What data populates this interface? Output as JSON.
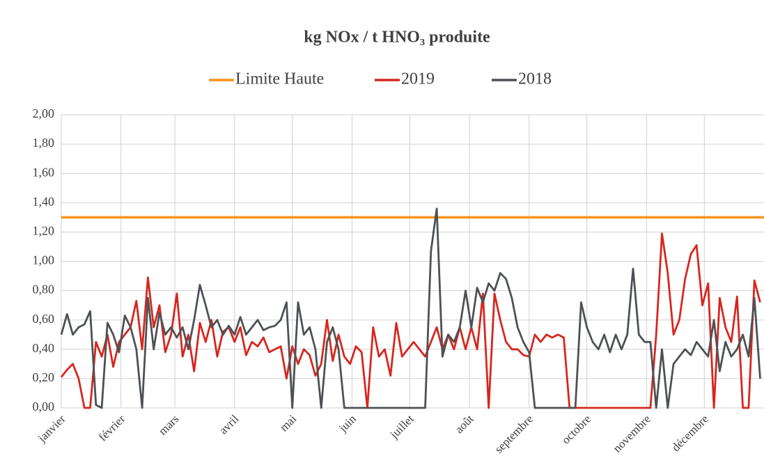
{
  "chart_data": {
    "type": "line",
    "title": "kg NOx / t HNO₃ produite",
    "x": [
      0,
      3,
      6,
      9,
      12,
      15,
      18,
      21,
      24,
      27,
      30,
      33,
      36,
      39,
      42,
      45,
      48,
      51,
      54,
      57,
      60,
      63,
      66,
      69,
      72,
      75,
      78,
      81,
      84,
      87,
      90,
      93,
      96,
      99,
      102,
      105,
      108,
      111,
      114,
      117,
      120,
      123,
      126,
      129,
      132,
      135,
      138,
      141,
      144,
      147,
      150,
      153,
      156,
      159,
      162,
      165,
      168,
      171,
      174,
      177,
      180,
      183,
      186,
      189,
      192,
      195,
      198,
      201,
      204,
      207,
      210,
      213,
      216,
      219,
      222,
      225,
      228,
      231,
      234,
      237,
      240,
      243,
      246,
      249,
      252,
      255,
      258,
      261,
      264,
      267,
      270,
      273,
      276,
      279,
      282,
      285,
      288,
      291,
      294,
      297,
      300,
      303,
      306,
      309,
      312,
      315,
      318,
      321,
      324,
      327,
      330,
      333,
      336,
      339,
      342,
      345,
      348,
      351,
      354,
      357,
      360,
      363
    ],
    "xlim": [
      0,
      365
    ],
    "xticks": [
      {
        "value": 0,
        "label": "janvier"
      },
      {
        "value": 31,
        "label": "février"
      },
      {
        "value": 59,
        "label": "mars"
      },
      {
        "value": 90,
        "label": "avril"
      },
      {
        "value": 120,
        "label": "mai"
      },
      {
        "value": 151,
        "label": "juin"
      },
      {
        "value": 181,
        "label": "juillet"
      },
      {
        "value": 212,
        "label": "août"
      },
      {
        "value": 243,
        "label": "septembre"
      },
      {
        "value": 273,
        "label": "octobre"
      },
      {
        "value": 304,
        "label": "novembre"
      },
      {
        "value": 334,
        "label": "décembre"
      }
    ],
    "ylim": [
      0,
      2
    ],
    "yticks": [
      {
        "value": 0,
        "label": "0,00"
      },
      {
        "value": 0.2,
        "label": "0,20"
      },
      {
        "value": 0.4,
        "label": "0,40"
      },
      {
        "value": 0.6,
        "label": "0,60"
      },
      {
        "value": 0.8,
        "label": "0,80"
      },
      {
        "value": 1,
        "label": "1,00"
      },
      {
        "value": 1.2,
        "label": "1,20"
      },
      {
        "value": 1.4,
        "label": "1,40"
      },
      {
        "value": 1.6,
        "label": "1,60"
      },
      {
        "value": 1.8,
        "label": "1,80"
      },
      {
        "value": 2,
        "label": "2,00"
      }
    ],
    "grid": true,
    "legend": "top",
    "series": [
      {
        "name": "Limite Haute",
        "color": "#f7941d",
        "x": [
          0,
          365
        ],
        "values": [
          1.3,
          1.3
        ]
      },
      {
        "name": "2019",
        "color": "#d7261e",
        "values": [
          0.21,
          0.26,
          0.3,
          0.2,
          0,
          0,
          0.45,
          0.35,
          0.5,
          0.28,
          0.45,
          0.5,
          0.55,
          0.73,
          0.4,
          0.89,
          0.55,
          0.7,
          0.38,
          0.5,
          0.78,
          0.35,
          0.5,
          0.25,
          0.58,
          0.45,
          0.6,
          0.35,
          0.52,
          0.55,
          0.45,
          0.55,
          0.36,
          0.45,
          0.42,
          0.48,
          0.38,
          0.4,
          0.42,
          0.2,
          0.42,
          0.3,
          0.4,
          0.36,
          0.22,
          0.3,
          0.6,
          0.32,
          0.5,
          0.35,
          0.3,
          0.42,
          0.38,
          0,
          0.55,
          0.35,
          0.4,
          0.22,
          0.58,
          0.35,
          0.4,
          0.45,
          0.4,
          0.35,
          0.45,
          0.55,
          0.4,
          0.5,
          0.4,
          0.55,
          0.4,
          0.55,
          0.4,
          0.78,
          0,
          0.78,
          0.6,
          0.45,
          0.4,
          0.4,
          0.36,
          0.35,
          0.5,
          0.45,
          0.5,
          0.48,
          0.5,
          0.48,
          0,
          0,
          0,
          0,
          0,
          0,
          0,
          0,
          0,
          0,
          0,
          0,
          0,
          0,
          0,
          0.5,
          1.19,
          0.92,
          0.5,
          0.6,
          0.88,
          1.05,
          1.11,
          0.7,
          0.85,
          0,
          0.75,
          0.55,
          0.45,
          0.76,
          0,
          0,
          0.87,
          0.72
        ]
      },
      {
        "name": "2018",
        "color": "#4d5155",
        "values": [
          0.5,
          0.64,
          0.5,
          0.55,
          0.57,
          0.66,
          0.02,
          0,
          0.58,
          0.5,
          0.38,
          0.63,
          0.55,
          0.4,
          0,
          0.75,
          0.4,
          0.65,
          0.5,
          0.55,
          0.48,
          0.55,
          0.4,
          0.6,
          0.84,
          0.7,
          0.55,
          0.6,
          0.5,
          0.56,
          0.5,
          0.62,
          0.5,
          0.55,
          0.6,
          0.53,
          0.55,
          0.56,
          0.6,
          0.72,
          0,
          0.72,
          0.5,
          0.55,
          0.4,
          0,
          0.45,
          0.55,
          0.4,
          0,
          0,
          0,
          0,
          0,
          0,
          0,
          0,
          0,
          0,
          0,
          0,
          0,
          0,
          0,
          1.07,
          1.36,
          0.35,
          0.5,
          0.45,
          0.55,
          0.8,
          0.55,
          0.82,
          0.72,
          0.85,
          0.8,
          0.92,
          0.88,
          0.75,
          0.55,
          0.45,
          0.38,
          0,
          0,
          0,
          0,
          0,
          0,
          0,
          0,
          0.72,
          0.55,
          0.45,
          0.4,
          0.5,
          0.38,
          0.5,
          0.4,
          0.5,
          0.95,
          0.5,
          0.45,
          0.45,
          0,
          0.4,
          0,
          0.3,
          0.35,
          0.4,
          0.36,
          0.45,
          0.4,
          0.35,
          0.6,
          0.25,
          0.45,
          0.35,
          0.4,
          0.5,
          0.35,
          0.75,
          0.2
        ]
      }
    ]
  }
}
